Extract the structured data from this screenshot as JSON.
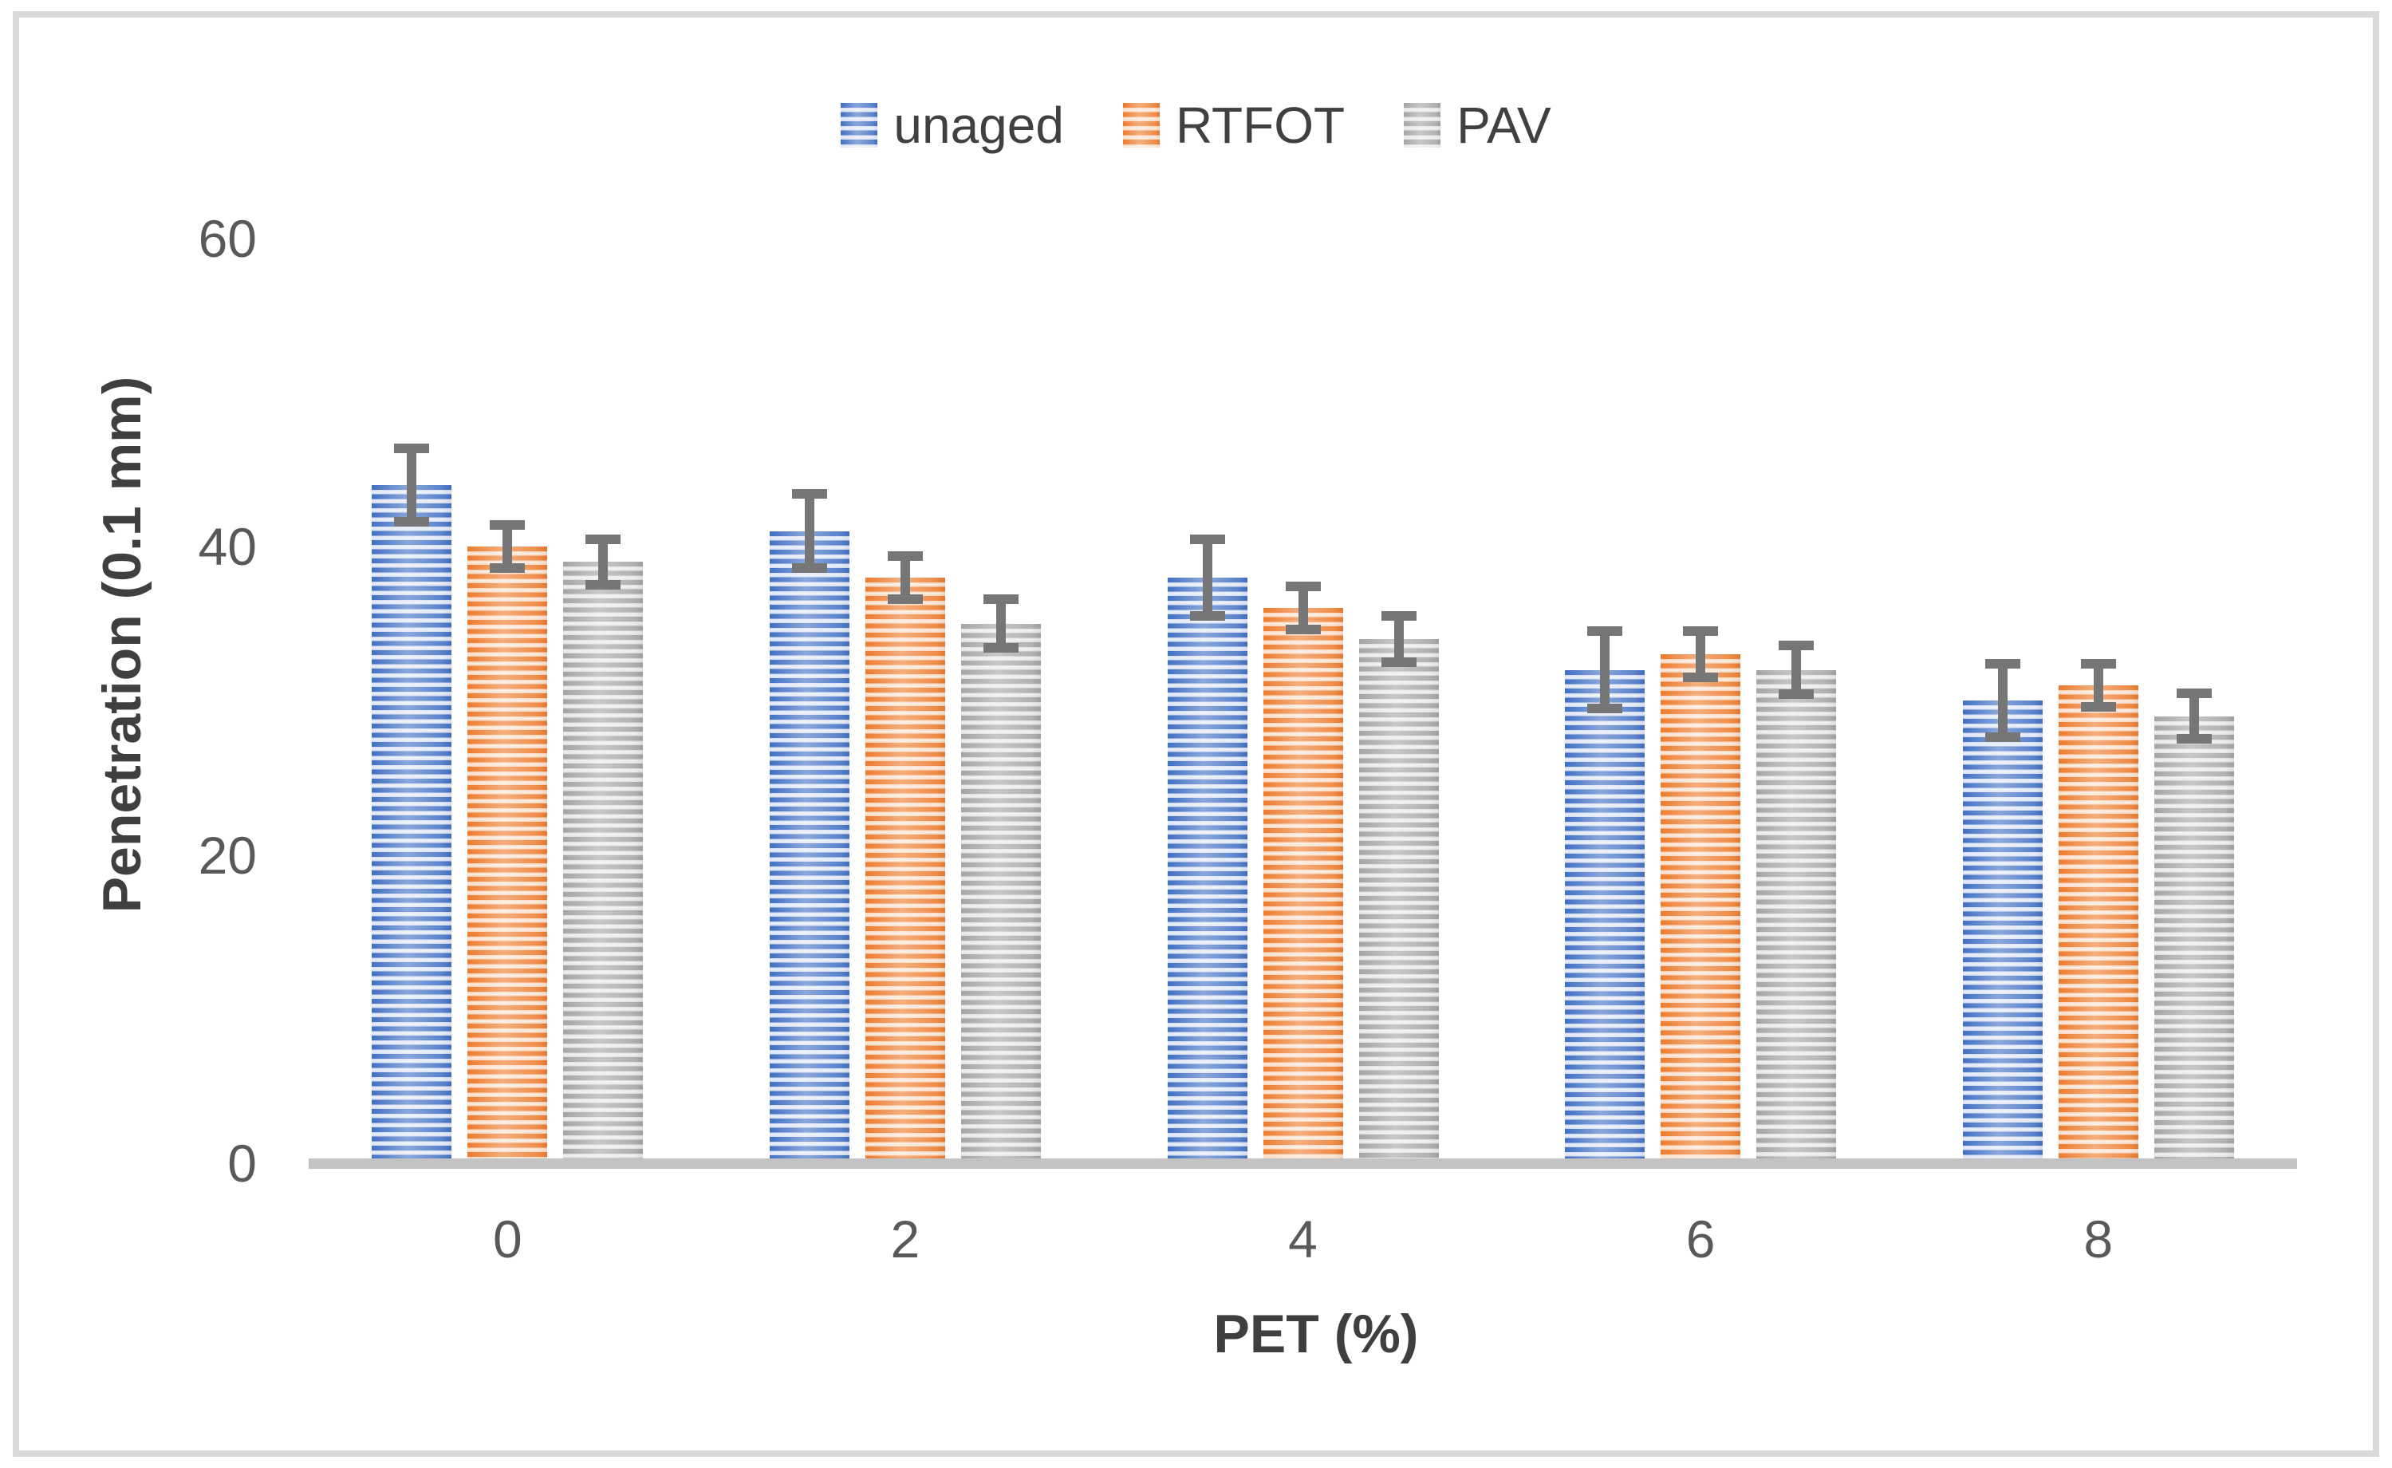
{
  "chart_data": {
    "type": "bar",
    "title": "",
    "xlabel": "PET (%)",
    "ylabel": "Penetration (0.1 mm)",
    "categories": [
      "0",
      "2",
      "4",
      "6",
      "8"
    ],
    "series": [
      {
        "name": "unaged",
        "color": "#4472C4",
        "stripe_light": "#CDD9F1",
        "stripe_lighter": "#E9EEF9",
        "values": [
          44,
          41,
          38,
          32,
          30
        ],
        "error": [
          2.7,
          2.7,
          2.8,
          2.8,
          2.7
        ]
      },
      {
        "name": "RTFOT",
        "color": "#ED7D31",
        "stripe_light": "#FAD2B4",
        "stripe_lighter": "#FBE9DB",
        "values": [
          40,
          38,
          36,
          33,
          31
        ],
        "error": [
          1.7,
          1.7,
          1.7,
          1.8,
          1.7
        ]
      },
      {
        "name": "PAV",
        "color": "#A6A6A6",
        "stripe_light": "#DCDCDC",
        "stripe_lighter": "#F0F0F0",
        "values": [
          39,
          35,
          34,
          32,
          29
        ],
        "error": [
          1.8,
          1.9,
          1.8,
          1.9,
          1.8
        ]
      }
    ],
    "y_ticks": [
      0,
      20,
      40,
      60
    ],
    "ylim": [
      0,
      60
    ],
    "legend_position": "top",
    "grid": false,
    "bar_pattern": "horizontal-stripes",
    "error_bars": "symmetric"
  },
  "colors": {
    "axis_line": "#C3C3C3",
    "error_bar": "#767676",
    "tick_text": "#595959",
    "title_text": "#3F3F3F",
    "legend_text": "#404040",
    "frame_border": "#D9D9D9",
    "background": "#FFFFFF"
  }
}
